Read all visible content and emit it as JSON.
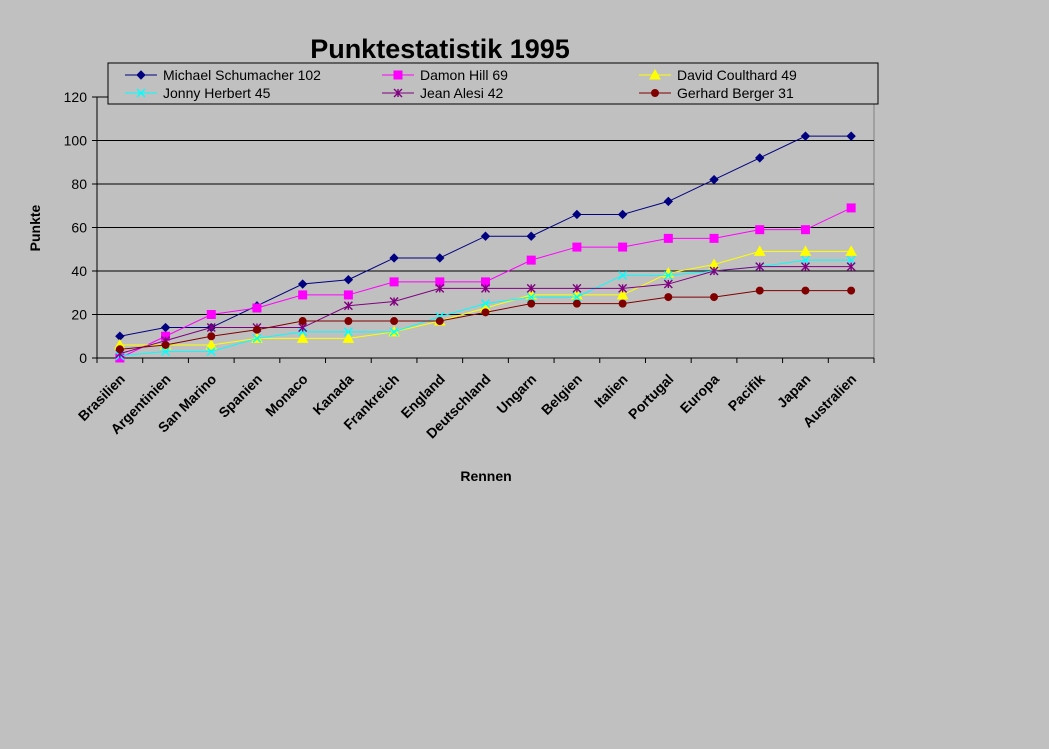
{
  "chart_data": {
    "type": "line",
    "title": "Punktestatistik 1995",
    "xlabel": "Rennen",
    "ylabel": "Punkte",
    "ylim": [
      0,
      120
    ],
    "yticks": [
      0,
      20,
      40,
      60,
      80,
      100,
      120
    ],
    "grid": true,
    "legend_position": "top",
    "categories": [
      "Brasilien",
      "Argentinien",
      "San Marino",
      "Spanien",
      "Monaco",
      "Kanada",
      "Frankreich",
      "England",
      "Deutschland",
      "Ungarn",
      "Belgien",
      "Italien",
      "Portugal",
      "Europa",
      "Pacifik",
      "Japan",
      "Australien"
    ],
    "series": [
      {
        "name": "Michael Schumacher 102",
        "color": "#000080",
        "marker": "diamond",
        "values": [
          10,
          14,
          14,
          24,
          34,
          36,
          46,
          46,
          56,
          56,
          66,
          66,
          72,
          82,
          92,
          102,
          102
        ]
      },
      {
        "name": "Damon Hill 69",
        "color": "#ff00ff",
        "marker": "square",
        "values": [
          0,
          10,
          20,
          23,
          29,
          29,
          35,
          35,
          35,
          45,
          51,
          51,
          55,
          55,
          59,
          59,
          69
        ]
      },
      {
        "name": "David Coulthard 49",
        "color": "#ffff00",
        "marker": "triangle",
        "values": [
          6,
          6,
          6,
          9,
          9,
          9,
          12,
          17,
          23,
          29,
          29,
          29,
          39,
          43,
          49,
          49,
          49
        ]
      },
      {
        "name": "Jonny Herbert 45",
        "color": "#00ffff",
        "marker": "x",
        "values": [
          1,
          3,
          3,
          9,
          12,
          12,
          12,
          19,
          25,
          28,
          28,
          38,
          38,
          40,
          42,
          45,
          45
        ]
      },
      {
        "name": "Jean Alesi 42",
        "color": "#800080",
        "marker": "star",
        "values": [
          2,
          8,
          14,
          14,
          14,
          24,
          26,
          32,
          32,
          32,
          32,
          32,
          34,
          40,
          42,
          42,
          42
        ]
      },
      {
        "name": "Gerhard Berger 31",
        "color": "#800000",
        "marker": "circle",
        "values": [
          4,
          6,
          10,
          13,
          17,
          17,
          17,
          17,
          21,
          25,
          25,
          25,
          28,
          28,
          31,
          31,
          31
        ]
      }
    ]
  }
}
